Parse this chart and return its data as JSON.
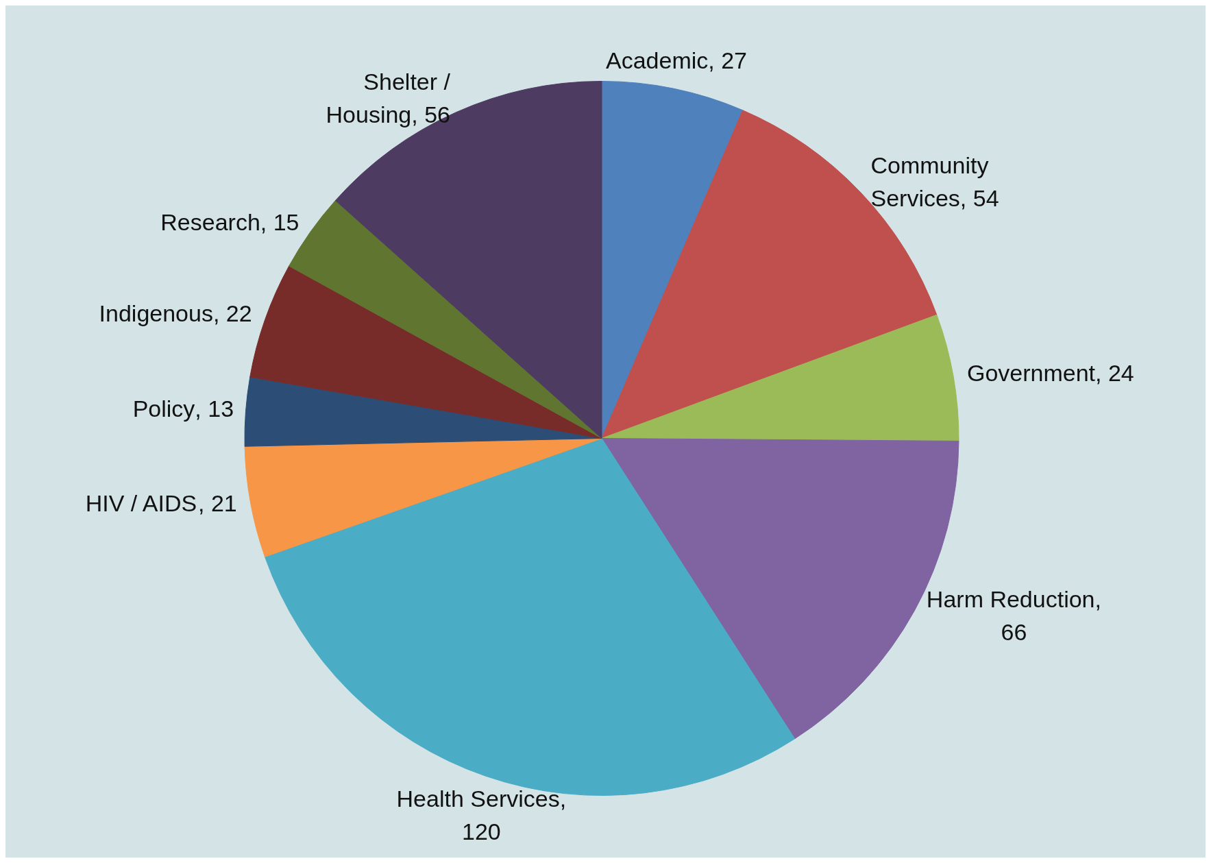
{
  "chart_data": {
    "type": "pie",
    "categories": [
      "Academic",
      "Community Services",
      "Government",
      "Harm Reduction",
      "Health Services",
      "HIV / AIDS",
      "Policy",
      "Indigenous",
      "Research",
      "Shelter / Housing"
    ],
    "values": [
      27,
      54,
      24,
      66,
      120,
      21,
      13,
      22,
      15,
      56
    ],
    "colors": [
      "#4f81bd",
      "#c0504d",
      "#9bbb59",
      "#8064a2",
      "#4bacc6",
      "#f79646",
      "#2c4d75",
      "#772c2a",
      "#5f7530",
      "#4d3b62"
    ],
    "value_labels": [
      ", 27",
      ", 54",
      ", 24",
      ", 66",
      ", 120",
      ", 21",
      ", 13",
      ", 22",
      ", 15",
      ", 56"
    ],
    "legend": false
  }
}
